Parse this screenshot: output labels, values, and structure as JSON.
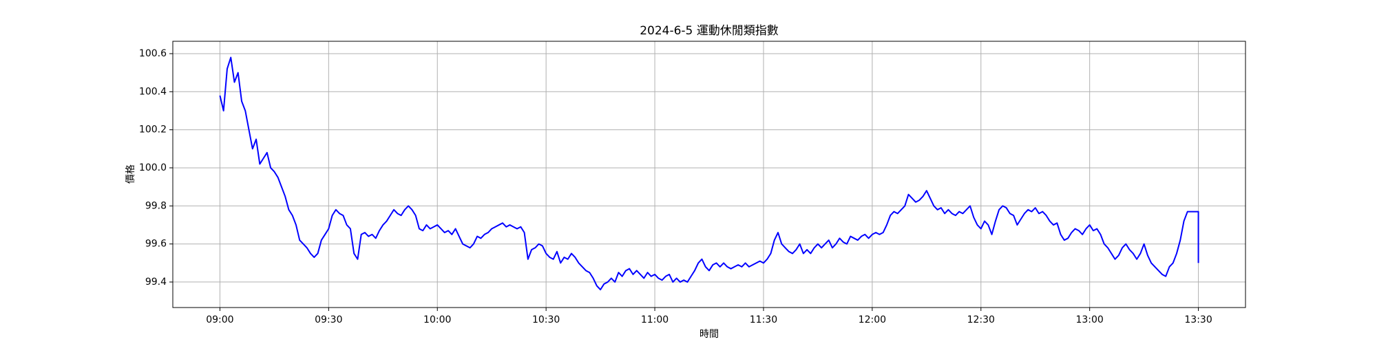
{
  "chart_data": {
    "type": "line",
    "title": "2024-6-5 運動休閒類指數",
    "x_label": "時間",
    "y_label": "價格",
    "color": "#0000ff",
    "grid": true,
    "xlim": [
      "08:47",
      "13:43"
    ],
    "xticks": [
      "09:00",
      "09:30",
      "10:00",
      "10:30",
      "11:00",
      "11:30",
      "12:00",
      "12:30",
      "13:00",
      "13:30"
    ],
    "ylim": [
      99.266,
      100.665
    ],
    "yticks": [
      99.4,
      99.6,
      99.8,
      {
        "value": 100,
        "label": "100.0"
      },
      100.2,
      100.4,
      100.6
    ],
    "x": [
      "09:00",
      "09:01",
      "09:02",
      "09:03",
      "09:04",
      "09:05",
      "09:06",
      "09:07",
      "09:08",
      "09:09",
      "09:10",
      "09:11",
      "09:12",
      "09:13",
      "09:14",
      "09:15",
      "09:16",
      "09:17",
      "09:18",
      "09:19",
      "09:20",
      "09:21",
      "09:22",
      "09:23",
      "09:24",
      "09:25",
      "09:26",
      "09:27",
      "09:28",
      "09:29",
      "09:30",
      "09:31",
      "09:32",
      "09:33",
      "09:34",
      "09:35",
      "09:36",
      "09:37",
      "09:38",
      "09:39",
      "09:40",
      "09:41",
      "09:42",
      "09:43",
      "09:44",
      "09:45",
      "09:46",
      "09:47",
      "09:48",
      "09:49",
      "09:50",
      "09:51",
      "09:52",
      "09:53",
      "09:54",
      "09:55",
      "09:56",
      "09:57",
      "09:58",
      "09:59",
      "10:00",
      "10:01",
      "10:02",
      "10:03",
      "10:04",
      "10:05",
      "10:06",
      "10:07",
      "10:08",
      "10:09",
      "10:10",
      "10:11",
      "10:12",
      "10:13",
      "10:14",
      "10:15",
      "10:16",
      "10:17",
      "10:18",
      "10:19",
      "10:20",
      "10:21",
      "10:22",
      "10:23",
      "10:24",
      "10:25",
      "10:26",
      "10:27",
      "10:28",
      "10:29",
      "10:30",
      "10:31",
      "10:32",
      "10:33",
      "10:34",
      "10:35",
      "10:36",
      "10:37",
      "10:38",
      "10:39",
      "10:40",
      "10:41",
      "10:42",
      "10:43",
      "10:44",
      "10:45",
      "10:46",
      "10:47",
      "10:48",
      "10:49",
      "10:50",
      "10:51",
      "10:52",
      "10:53",
      "10:54",
      "10:55",
      "10:56",
      "10:57",
      "10:58",
      "10:59",
      "11:00",
      "11:01",
      "11:02",
      "11:03",
      "11:04",
      "11:05",
      "11:06",
      "11:07",
      "11:08",
      "11:09",
      "11:10",
      "11:11",
      "11:12",
      "11:13",
      "11:14",
      "11:15",
      "11:16",
      "11:17",
      "11:18",
      "11:19",
      "11:20",
      "11:21",
      "11:22",
      "11:23",
      "11:24",
      "11:25",
      "11:26",
      "11:27",
      "11:28",
      "11:29",
      "11:30",
      "11:31",
      "11:32",
      "11:33",
      "11:34",
      "11:35",
      "11:36",
      "11:37",
      "11:38",
      "11:39",
      "11:40",
      "11:41",
      "11:42",
      "11:43",
      "11:44",
      "11:45",
      "11:46",
      "11:47",
      "11:48",
      "11:49",
      "11:50",
      "11:51",
      "11:52",
      "11:53",
      "11:54",
      "11:55",
      "11:56",
      "11:57",
      "11:58",
      "11:59",
      "12:00",
      "12:01",
      "12:02",
      "12:03",
      "12:04",
      "12:05",
      "12:06",
      "12:07",
      "12:08",
      "12:09",
      "12:10",
      "12:11",
      "12:12",
      "12:13",
      "12:14",
      "12:15",
      "12:16",
      "12:17",
      "12:18",
      "12:19",
      "12:20",
      "12:21",
      "12:22",
      "12:23",
      "12:24",
      "12:25",
      "12:26",
      "12:27",
      "12:28",
      "12:29",
      "12:30",
      "12:31",
      "12:32",
      "12:33",
      "12:34",
      "12:35",
      "12:36",
      "12:37",
      "12:38",
      "12:39",
      "12:40",
      "12:41",
      "12:42",
      "12:43",
      "12:44",
      "12:45",
      "12:46",
      "12:47",
      "12:48",
      "12:49",
      "12:50",
      "12:51",
      "12:52",
      "12:53",
      "12:54",
      "12:55",
      "12:56",
      "12:57",
      "12:58",
      "12:59",
      "13:00",
      "13:01",
      "13:02",
      "13:03",
      "13:04",
      "13:05",
      "13:06",
      "13:07",
      "13:08",
      "13:09",
      "13:10",
      "13:11",
      "13:12",
      "13:13",
      "13:14",
      "13:15",
      "13:16",
      "13:17",
      "13:18",
      "13:19",
      "13:20",
      "13:21",
      "13:22",
      "13:23",
      "13:24",
      "13:25",
      "13:26",
      "13:27",
      "13:28",
      "13:29",
      "13:30",
      "13:30"
    ],
    "values": [
      100.38,
      100.3,
      100.52,
      100.58,
      100.45,
      100.5,
      100.35,
      100.3,
      100.2,
      100.1,
      100.15,
      100.02,
      100.05,
      100.08,
      100.0,
      99.98,
      99.95,
      99.9,
      99.85,
      99.78,
      99.75,
      99.7,
      99.62,
      99.6,
      99.58,
      99.55,
      99.53,
      99.55,
      99.62,
      99.65,
      99.68,
      99.75,
      99.78,
      99.76,
      99.75,
      99.7,
      99.68,
      99.55,
      99.52,
      99.65,
      99.66,
      99.64,
      99.65,
      99.63,
      99.67,
      99.7,
      99.72,
      99.75,
      99.78,
      99.76,
      99.75,
      99.78,
      99.8,
      99.78,
      99.75,
      99.68,
      99.67,
      99.7,
      99.68,
      99.69,
      99.7,
      99.68,
      99.66,
      99.67,
      99.65,
      99.68,
      99.64,
      99.6,
      99.59,
      99.58,
      99.6,
      99.64,
      99.63,
      99.65,
      99.66,
      99.68,
      99.69,
      99.7,
      99.71,
      99.69,
      99.7,
      99.69,
      99.68,
      99.69,
      99.66,
      99.52,
      99.57,
      99.58,
      99.6,
      99.59,
      99.55,
      99.53,
      99.52,
      99.56,
      99.5,
      99.53,
      99.52,
      99.55,
      99.53,
      99.5,
      99.48,
      99.46,
      99.45,
      99.42,
      99.38,
      99.36,
      99.39,
      99.4,
      99.42,
      99.4,
      99.45,
      99.43,
      99.46,
      99.47,
      99.44,
      99.46,
      99.44,
      99.42,
      99.45,
      99.43,
      99.44,
      99.42,
      99.41,
      99.43,
      99.44,
      99.4,
      99.42,
      99.4,
      99.41,
      99.4,
      99.43,
      99.46,
      99.5,
      99.52,
      99.48,
      99.46,
      99.49,
      99.5,
      99.48,
      99.5,
      99.48,
      99.47,
      99.48,
      99.49,
      99.48,
      99.5,
      99.48,
      99.49,
      99.5,
      99.51,
      99.5,
      99.52,
      99.55,
      99.62,
      99.66,
      99.6,
      99.58,
      99.56,
      99.55,
      99.57,
      99.6,
      99.55,
      99.57,
      99.55,
      99.58,
      99.6,
      99.58,
      99.6,
      99.62,
      99.58,
      99.6,
      99.63,
      99.61,
      99.6,
      99.64,
      99.63,
      99.62,
      99.64,
      99.65,
      99.63,
      99.65,
      99.66,
      99.65,
      99.66,
      99.7,
      99.75,
      99.77,
      99.76,
      99.78,
      99.8,
      99.86,
      99.84,
      99.82,
      99.83,
      99.85,
      99.88,
      99.84,
      99.8,
      99.78,
      99.79,
      99.76,
      99.78,
      99.76,
      99.75,
      99.77,
      99.76,
      99.78,
      99.8,
      99.74,
      99.7,
      99.68,
      99.72,
      99.7,
      99.65,
      99.72,
      99.78,
      99.8,
      99.79,
      99.76,
      99.75,
      99.7,
      99.73,
      99.76,
      99.78,
      99.77,
      99.79,
      99.76,
      99.77,
      99.75,
      99.72,
      99.7,
      99.71,
      99.65,
      99.62,
      99.63,
      99.66,
      99.68,
      99.67,
      99.65,
      99.68,
      99.7,
      99.67,
      99.68,
      99.65,
      99.6,
      99.58,
      99.55,
      99.52,
      99.54,
      99.58,
      99.6,
      99.57,
      99.55,
      99.52,
      99.55,
      99.6,
      99.54,
      99.5,
      99.48,
      99.46,
      99.44,
      99.43,
      99.48,
      99.5,
      99.55,
      99.62,
      99.72,
      99.77,
      99.77,
      99.77,
      99.77,
      99.5
    ]
  }
}
